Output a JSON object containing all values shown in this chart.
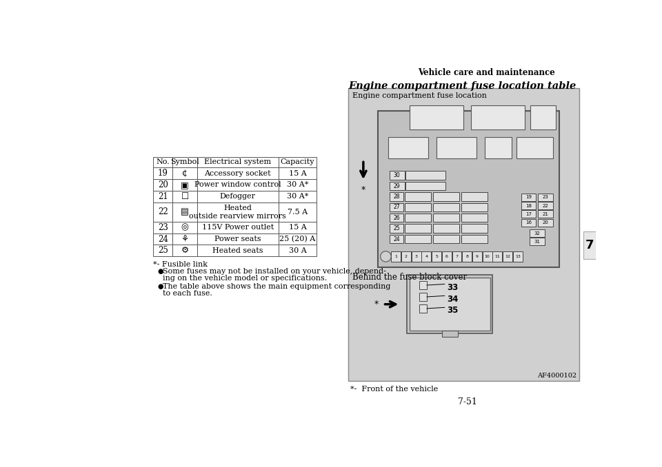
{
  "page_header": "Vehicle care and maintenance",
  "page_number": "7-51",
  "chapter_number": "7",
  "table_headers": [
    "No.",
    "Symbol",
    "Electrical system",
    "Capacity"
  ],
  "table_rows": [
    {
      "no": "19",
      "system": "Accessory socket",
      "capacity": "15 A"
    },
    {
      "no": "20",
      "system": "Power window control",
      "capacity": "30 A*"
    },
    {
      "no": "21",
      "system": "Defogger",
      "capacity": "30 A*"
    },
    {
      "no": "22",
      "system": "Heated\noutside rearview mirrors",
      "capacity": "7.5 A"
    },
    {
      "no": "23",
      "system": "115V Power outlet",
      "capacity": "15 A"
    },
    {
      "no": "24",
      "system": "Power seats",
      "capacity": "25 (20) A"
    },
    {
      "no": "25",
      "system": "Heated seats",
      "capacity": "30 A"
    }
  ],
  "footnote_star": "*- Fusible link",
  "footnote_bullet1_line1": "Some fuses may not be installed on your vehicle, depend-",
  "footnote_bullet1_line2": "ing on the vehicle model or specifications.",
  "footnote_bullet2_line1": "The table above shows the main equipment corresponding",
  "footnote_bullet2_line2": "to each fuse.",
  "right_section_title": "Engine compartment fuse location table",
  "diagram_label_top": "Engine compartment fuse location",
  "diagram_label_bottom": "Behind the fuse block cover",
  "diagram_footnote": "*-  Front of the vehicle",
  "diagram_code": "AF4000102",
  "fuse_numbers_right_col1": [
    "19",
    "18",
    "17",
    "16"
  ],
  "fuse_numbers_right_col2": [
    "23",
    "22",
    "21",
    "20"
  ],
  "fuse_32": "32",
  "fuse_31": "31",
  "fuse_numbers_left": [
    "30",
    "29",
    "28",
    "27",
    "26",
    "25",
    "24"
  ],
  "fuse_numbers_bottom_cover": [
    "33",
    "34",
    "35"
  ],
  "bg_color": "#ffffff",
  "diagram_bg": "#d0d0d0",
  "fuse_block_bg": "#c0c0c0",
  "fuse_box_bg": "#e8e8e8",
  "box_border": "#555555"
}
